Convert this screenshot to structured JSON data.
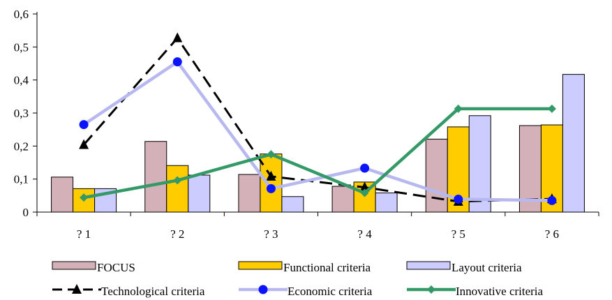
{
  "chart_data": {
    "type": "bar",
    "categories": [
      "? 1",
      "? 2",
      "? 3",
      "? 4",
      "? 5",
      "? 6"
    ],
    "ylim": [
      0,
      0.6
    ],
    "y_ticks": [
      "0",
      "0,1",
      "0,2",
      "0,3",
      "0,4",
      "0,5",
      "0,6"
    ],
    "grid": false,
    "legend_position": "bottom",
    "series": [
      {
        "name": "FOCUS",
        "kind": "bar",
        "color": "#d4b0b8",
        "values": [
          0.106,
          0.214,
          0.114,
          0.078,
          0.221,
          0.262
        ]
      },
      {
        "name": "Functional criteria",
        "kind": "bar",
        "color": "#ffcc00",
        "values": [
          0.071,
          0.141,
          0.176,
          0.091,
          0.258,
          0.264
        ]
      },
      {
        "name": "Layout criteria",
        "kind": "bar",
        "color": "#ccccff",
        "values": [
          0.071,
          0.112,
          0.047,
          0.058,
          0.292,
          0.417
        ]
      },
      {
        "name": "Technological criteria",
        "kind": "line",
        "color": "#000000",
        "line_style": "dashed",
        "marker": "triangle",
        "values": [
          0.204,
          0.527,
          0.108,
          0.075,
          0.032,
          0.04
        ]
      },
      {
        "name": "Economic criteria",
        "kind": "line",
        "color": "#b8b8f0",
        "line_style": "solid",
        "marker": "circle",
        "marker_color": "#0a14ff",
        "values": [
          0.265,
          0.455,
          0.071,
          0.133,
          0.039,
          0.035
        ]
      },
      {
        "name": "Innovative criteria",
        "kind": "line",
        "color": "#339966",
        "line_style": "solid",
        "marker": "diamond",
        "values": [
          0.044,
          0.096,
          0.175,
          0.058,
          0.313,
          0.313
        ]
      }
    ]
  }
}
